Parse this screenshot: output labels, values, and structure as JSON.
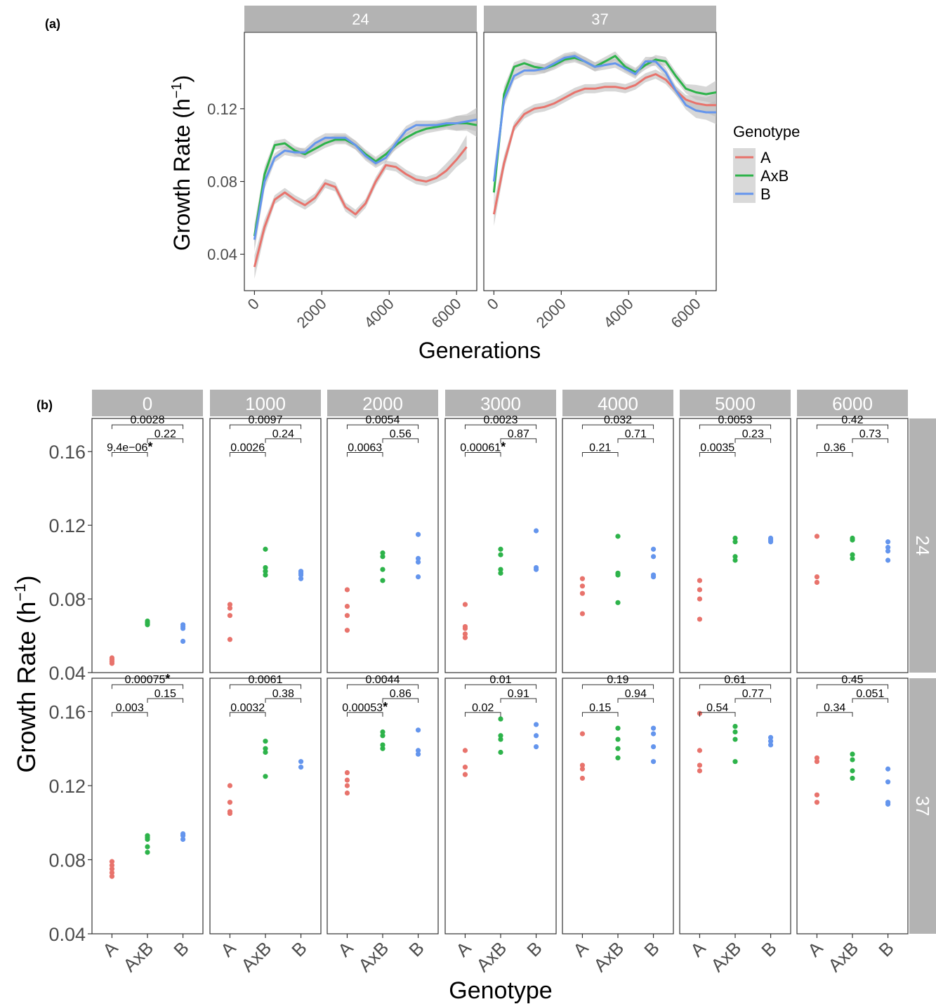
{
  "panel_labels": [
    "(a)",
    "(b)"
  ],
  "colors": {
    "A": "#e8736c",
    "AxB": "#2db34a",
    "B": "#6495ed",
    "strip": "#b3b3b3",
    "ribbon": "#bdbdbd"
  },
  "chart_data": [
    {
      "type": "line",
      "panel": "(a)",
      "xlabel": "Generations",
      "ylabel": "Growth Rate (h",
      "ylabel_sup": "−1",
      "ylabel_close": ")",
      "ylim": [
        0.02,
        0.162
      ],
      "xlim": [
        -300,
        6600
      ],
      "yticks": [
        0.04,
        0.08,
        0.12
      ],
      "ytick_labels": [
        "0.04",
        "0.08",
        "0.12"
      ],
      "xticks": [
        0,
        2000,
        4000,
        6000
      ],
      "xtick_labels": [
        "0",
        "2000",
        "4000",
        "6000"
      ],
      "legend": {
        "title": "Genotype",
        "position": "right",
        "entries": [
          "A",
          "AxB",
          "B"
        ]
      },
      "grid": false,
      "facets": [
        {
          "label": "24",
          "series": [
            {
              "name": "A",
              "x": [
                0,
                300,
                600,
                900,
                1200,
                1500,
                1800,
                2100,
                2400,
                2700,
                3000,
                3300,
                3600,
                3900,
                4200,
                4500,
                4800,
                5100,
                5400,
                5700,
                6000,
                6300
              ],
              "y": [
                0.033,
                0.055,
                0.07,
                0.074,
                0.07,
                0.067,
                0.071,
                0.079,
                0.077,
                0.066,
                0.062,
                0.068,
                0.08,
                0.089,
                0.088,
                0.084,
                0.081,
                0.08,
                0.082,
                0.086,
                0.092,
                0.099
              ]
            },
            {
              "name": "AxB",
              "x": [
                0,
                300,
                600,
                900,
                1200,
                1500,
                1800,
                2100,
                2400,
                2700,
                3000,
                3300,
                3600,
                3900,
                4200,
                4500,
                4800,
                5100,
                5400,
                5700,
                6000,
                6300,
                6600
              ],
              "y": [
                0.05,
                0.084,
                0.1,
                0.101,
                0.097,
                0.095,
                0.098,
                0.101,
                0.103,
                0.103,
                0.1,
                0.095,
                0.091,
                0.095,
                0.1,
                0.104,
                0.107,
                0.109,
                0.11,
                0.111,
                0.112,
                0.112,
                0.111
              ]
            },
            {
              "name": "B",
              "x": [
                0,
                300,
                600,
                900,
                1200,
                1500,
                1800,
                2100,
                2400,
                2700,
                3000,
                3300,
                3600,
                3900,
                4200,
                4500,
                4800,
                5100,
                5400,
                5700,
                6000,
                6300,
                6600
              ],
              "y": [
                0.048,
                0.08,
                0.093,
                0.097,
                0.096,
                0.096,
                0.101,
                0.104,
                0.104,
                0.104,
                0.1,
                0.094,
                0.09,
                0.093,
                0.101,
                0.108,
                0.111,
                0.111,
                0.111,
                0.112,
                0.112,
                0.113,
                0.114
              ]
            }
          ]
        },
        {
          "label": "37",
          "series": [
            {
              "name": "A",
              "x": [
                0,
                300,
                600,
                900,
                1200,
                1500,
                1800,
                2100,
                2400,
                2700,
                3000,
                3300,
                3600,
                3900,
                4200,
                4500,
                4800,
                5100,
                5400,
                5700,
                6000,
                6300,
                6600
              ],
              "y": [
                0.062,
                0.09,
                0.11,
                0.117,
                0.12,
                0.121,
                0.123,
                0.126,
                0.129,
                0.131,
                0.131,
                0.132,
                0.132,
                0.131,
                0.133,
                0.137,
                0.139,
                0.136,
                0.13,
                0.125,
                0.123,
                0.122,
                0.122
              ]
            },
            {
              "name": "AxB",
              "x": [
                0,
                300,
                600,
                900,
                1200,
                1500,
                1800,
                2100,
                2400,
                2700,
                3000,
                3300,
                3600,
                3900,
                4200,
                4500,
                4800,
                5100,
                5400,
                5700,
                6000,
                6300,
                6600
              ],
              "y": [
                0.074,
                0.128,
                0.143,
                0.145,
                0.143,
                0.142,
                0.144,
                0.147,
                0.148,
                0.146,
                0.143,
                0.146,
                0.149,
                0.143,
                0.14,
                0.144,
                0.147,
                0.146,
                0.138,
                0.131,
                0.129,
                0.128,
                0.129
              ]
            },
            {
              "name": "B",
              "x": [
                0,
                300,
                600,
                900,
                1200,
                1500,
                1800,
                2100,
                2400,
                2700,
                3000,
                3300,
                3600,
                3900,
                4200,
                4500,
                4800,
                5100,
                5400,
                5700,
                6000,
                6300,
                6600
              ],
              "y": [
                0.08,
                0.125,
                0.138,
                0.141,
                0.141,
                0.142,
                0.145,
                0.148,
                0.149,
                0.146,
                0.143,
                0.144,
                0.145,
                0.142,
                0.139,
                0.146,
                0.146,
                0.14,
                0.13,
                0.122,
                0.119,
                0.118,
                0.118
              ]
            }
          ]
        }
      ]
    },
    {
      "type": "scatter",
      "panel": "(b)",
      "xlabel": "Genotype",
      "ylabel": "Growth Rate (h",
      "ylabel_sup": "−1",
      "ylabel_close": ")",
      "ylim": [
        0.04,
        0.178
      ],
      "yticks": [
        0.04,
        0.08,
        0.12,
        0.16
      ],
      "ytick_labels": [
        "0.04",
        "0.08",
        "0.12",
        "0.16"
      ],
      "categories": [
        "A",
        "AxB",
        "B"
      ],
      "grid": false,
      "col_facets": [
        "0",
        "1000",
        "2000",
        "3000",
        "4000",
        "5000",
        "6000"
      ],
      "row_facets": [
        "24",
        "37"
      ],
      "cells": [
        [
          {
            "points": {
              "A": [
                0.045,
                0.046,
                0.047,
                0.048
              ],
              "AxB": [
                0.066,
                0.067,
                0.068
              ],
              "B": [
                0.057,
                0.064,
                0.065,
                0.066
              ]
            },
            "p": {
              "A_AxB": "9.4e−06",
              "AxB_B": "0.22",
              "A_B": "0.0028"
            },
            "sig": "A_AxB"
          },
          {
            "points": {
              "A": [
                0.058,
                0.071,
                0.075,
                0.077
              ],
              "AxB": [
                0.093,
                0.095,
                0.097,
                0.107
              ],
              "B": [
                0.091,
                0.093,
                0.094,
                0.095
              ]
            },
            "p": {
              "A_AxB": "0.0026",
              "AxB_B": "0.24",
              "A_B": "0.0097"
            },
            "sig": ""
          },
          {
            "points": {
              "A": [
                0.063,
                0.071,
                0.076,
                0.085
              ],
              "AxB": [
                0.09,
                0.096,
                0.103,
                0.105
              ],
              "B": [
                0.092,
                0.1,
                0.102,
                0.115
              ]
            },
            "p": {
              "A_AxB": "0.0063",
              "AxB_B": "0.56",
              "A_B": "0.0054"
            },
            "sig": ""
          },
          {
            "points": {
              "A": [
                0.059,
                0.061,
                0.064,
                0.065,
                0.077
              ],
              "AxB": [
                0.094,
                0.096,
                0.104,
                0.107
              ],
              "B": [
                0.096,
                0.097,
                0.117
              ]
            },
            "p": {
              "A_AxB": "0.00061",
              "AxB_B": "0.87",
              "A_B": "0.0023"
            },
            "sig": "A_AxB"
          },
          {
            "points": {
              "A": [
                0.072,
                0.083,
                0.087,
                0.091
              ],
              "AxB": [
                0.078,
                0.093,
                0.094,
                0.114
              ],
              "B": [
                0.092,
                0.093,
                0.103,
                0.107
              ]
            },
            "p": {
              "A_AxB": "0.21",
              "AxB_B": "0.71",
              "A_B": "0.032"
            },
            "sig": ""
          },
          {
            "points": {
              "A": [
                0.069,
                0.08,
                0.085,
                0.09
              ],
              "AxB": [
                0.101,
                0.103,
                0.111,
                0.113
              ],
              "B": [
                0.111,
                0.112,
                0.113
              ]
            },
            "p": {
              "A_AxB": "0.0035",
              "AxB_B": "0.23",
              "A_B": "0.0053"
            },
            "sig": ""
          },
          {
            "points": {
              "A": [
                0.089,
                0.092,
                0.114
              ],
              "AxB": [
                0.102,
                0.104,
                0.112,
                0.113
              ],
              "B": [
                0.101,
                0.106,
                0.108,
                0.111
              ]
            },
            "p": {
              "A_AxB": "0.36",
              "AxB_B": "0.73",
              "A_B": "0.42"
            },
            "sig": ""
          }
        ],
        [
          {
            "points": {
              "A": [
                0.071,
                0.073,
                0.075,
                0.077,
                0.079
              ],
              "AxB": [
                0.084,
                0.087,
                0.091,
                0.092,
                0.093
              ],
              "B": [
                0.091,
                0.093,
                0.094
              ]
            },
            "p": {
              "A_AxB": "0.003",
              "AxB_B": "0.15",
              "A_B": "0.00075"
            },
            "sig": "A_B"
          },
          {
            "points": {
              "A": [
                0.105,
                0.106,
                0.111,
                0.12
              ],
              "AxB": [
                0.125,
                0.138,
                0.14,
                0.144
              ],
              "B": [
                0.13,
                0.133
              ]
            },
            "p": {
              "A_AxB": "0.0032",
              "AxB_B": "0.38",
              "A_B": "0.0061"
            },
            "sig": ""
          },
          {
            "points": {
              "A": [
                0.116,
                0.12,
                0.123,
                0.127
              ],
              "AxB": [
                0.14,
                0.142,
                0.147,
                0.149
              ],
              "B": [
                0.137,
                0.139,
                0.15
              ]
            },
            "p": {
              "A_AxB": "0.00053",
              "AxB_B": "0.86",
              "A_B": "0.0044"
            },
            "sig": "A_AxB"
          },
          {
            "points": {
              "A": [
                0.126,
                0.13,
                0.139
              ],
              "AxB": [
                0.138,
                0.145,
                0.147,
                0.156
              ],
              "B": [
                0.141,
                0.147,
                0.153
              ]
            },
            "p": {
              "A_AxB": "0.02",
              "AxB_B": "0.91",
              "A_B": "0.01"
            },
            "sig": ""
          },
          {
            "points": {
              "A": [
                0.124,
                0.129,
                0.131,
                0.148
              ],
              "AxB": [
                0.135,
                0.14,
                0.145,
                0.151
              ],
              "B": [
                0.133,
                0.141,
                0.148,
                0.151
              ]
            },
            "p": {
              "A_AxB": "0.15",
              "AxB_B": "0.94",
              "A_B": "0.19"
            },
            "sig": ""
          },
          {
            "points": {
              "A": [
                0.128,
                0.131,
                0.139,
                0.159
              ],
              "AxB": [
                0.133,
                0.145,
                0.149,
                0.152
              ],
              "B": [
                0.142,
                0.144,
                0.146
              ]
            },
            "p": {
              "A_AxB": "0.54",
              "AxB_B": "0.77",
              "A_B": "0.61"
            },
            "sig": ""
          },
          {
            "points": {
              "A": [
                0.111,
                0.115,
                0.133,
                0.135
              ],
              "AxB": [
                0.124,
                0.128,
                0.134,
                0.137
              ],
              "B": [
                0.11,
                0.111,
                0.122,
                0.129
              ]
            },
            "p": {
              "A_AxB": "0.34",
              "AxB_B": "0.051",
              "A_B": "0.45"
            },
            "sig": ""
          }
        ]
      ]
    }
  ]
}
